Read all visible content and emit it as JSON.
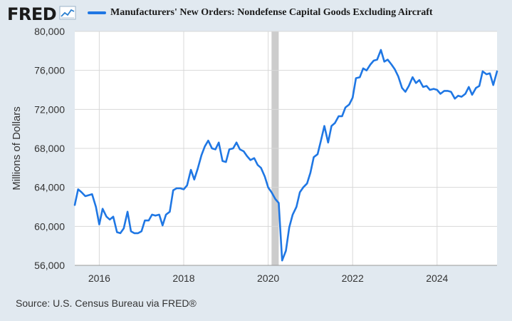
{
  "header": {
    "logo_text": "FRED",
    "logo_icon": "trend-line-icon"
  },
  "legend": {
    "label": "Manufacturers' New Orders: Nondefense Capital Goods Excluding Aircraft"
  },
  "source": "Source: U.S. Census Bureau via FRED®",
  "colors": {
    "background": "#e1e9f0",
    "plot_background": "#ffffff",
    "series": "#1f77e4",
    "recession": "#cccccc",
    "grid": "#d8d8d8"
  },
  "chart_data": {
    "type": "line",
    "title": "Manufacturers' New Orders: Nondefense Capital Goods Excluding Aircraft",
    "ylabel": "Millions of Dollars",
    "xlabel": "",
    "xlim": [
      2015.42,
      2025.42
    ],
    "ylim": [
      56000,
      80000
    ],
    "xticks": [
      2016,
      2018,
      2020,
      2022,
      2024
    ],
    "x_tick_labels": [
      "2016",
      "2018",
      "2020",
      "2022",
      "2024"
    ],
    "yticks": [
      56000,
      60000,
      64000,
      68000,
      72000,
      76000,
      80000
    ],
    "y_tick_labels": [
      "56,000",
      "60,000",
      "64,000",
      "68,000",
      "72,000",
      "76,000",
      "80,000"
    ],
    "grid": true,
    "recessions": [
      {
        "start": 2020.08,
        "end": 2020.25
      }
    ],
    "series": [
      {
        "name": "Manufacturers' New Orders: Nondefense Capital Goods Excluding Aircraft",
        "x": [
          2015.42,
          2015.5,
          2015.58,
          2015.67,
          2015.75,
          2015.83,
          2015.92,
          2016.0,
          2016.08,
          2016.17,
          2016.25,
          2016.33,
          2016.42,
          2016.5,
          2016.58,
          2016.67,
          2016.75,
          2016.83,
          2016.92,
          2017.0,
          2017.08,
          2017.17,
          2017.25,
          2017.33,
          2017.42,
          2017.5,
          2017.58,
          2017.67,
          2017.75,
          2017.83,
          2017.92,
          2018.0,
          2018.08,
          2018.17,
          2018.25,
          2018.33,
          2018.42,
          2018.5,
          2018.58,
          2018.67,
          2018.75,
          2018.83,
          2018.92,
          2019.0,
          2019.08,
          2019.17,
          2019.25,
          2019.33,
          2019.42,
          2019.5,
          2019.58,
          2019.67,
          2019.75,
          2019.83,
          2019.92,
          2020.0,
          2020.08,
          2020.17,
          2020.25,
          2020.33,
          2020.42,
          2020.5,
          2020.58,
          2020.67,
          2020.75,
          2020.83,
          2020.92,
          2021.0,
          2021.08,
          2021.17,
          2021.25,
          2021.33,
          2021.42,
          2021.5,
          2021.58,
          2021.67,
          2021.75,
          2021.83,
          2021.92,
          2022.0,
          2022.08,
          2022.17,
          2022.25,
          2022.33,
          2022.42,
          2022.5,
          2022.58,
          2022.67,
          2022.75,
          2022.83,
          2022.92,
          2023.0,
          2023.08,
          2023.17,
          2023.25,
          2023.33,
          2023.42,
          2023.5,
          2023.58,
          2023.67,
          2023.75,
          2023.83,
          2023.92,
          2024.0,
          2024.08,
          2024.17,
          2024.25,
          2024.33,
          2024.42,
          2024.5,
          2024.58,
          2024.67,
          2024.75,
          2024.83,
          2024.92,
          2025.0,
          2025.08,
          2025.17,
          2025.25,
          2025.33,
          2025.42
        ],
        "y": [
          62200,
          63800,
          63500,
          63100,
          63200,
          63300,
          62000,
          60200,
          61800,
          61000,
          60700,
          61000,
          59400,
          59300,
          59800,
          61500,
          59500,
          59300,
          59300,
          59500,
          60600,
          60600,
          61200,
          61100,
          61200,
          60100,
          61200,
          61500,
          63700,
          63900,
          63900,
          63800,
          64200,
          65800,
          64800,
          65900,
          67300,
          68200,
          68800,
          68000,
          67900,
          68600,
          66700,
          66600,
          67900,
          68000,
          68600,
          67900,
          67700,
          67200,
          66800,
          67000,
          66300,
          66000,
          65100,
          64000,
          63500,
          62800,
          62400,
          56500,
          57500,
          59900,
          61200,
          62000,
          63500,
          64000,
          64400,
          65500,
          67100,
          67400,
          68800,
          70300,
          68600,
          70300,
          70600,
          71300,
          71300,
          72200,
          72500,
          73200,
          75200,
          75300,
          76200,
          76000,
          76600,
          77000,
          77100,
          78100,
          76900,
          77100,
          76600,
          76100,
          75400,
          74200,
          73800,
          74400,
          75300,
          74700,
          75000,
          74300,
          74400,
          74000,
          74100,
          74000,
          73600,
          73900,
          73900,
          73800,
          73100,
          73400,
          73300,
          73600,
          74300,
          73500,
          74200,
          74400,
          75900,
          75600,
          75700,
          74500,
          75900
        ]
      }
    ]
  }
}
